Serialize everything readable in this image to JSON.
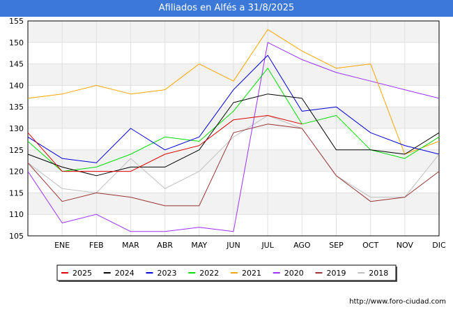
{
  "chart_data": {
    "type": "line",
    "title": "Afiliados en Alfés a 31/8/2025",
    "xlabel": "",
    "ylabel": "",
    "categories": [
      "",
      "ENE",
      "FEB",
      "MAR",
      "ABR",
      "MAY",
      "JUN",
      "JUL",
      "AGO",
      "SEP",
      "OCT",
      "NOV",
      "DIC"
    ],
    "yticks": [
      105,
      110,
      115,
      120,
      125,
      130,
      135,
      140,
      145,
      150,
      155
    ],
    "ylim": [
      105,
      155
    ],
    "legend_position": "bottom",
    "series": [
      {
        "name": "2025",
        "color": "#dd0000",
        "values": [
          129,
          120,
          120,
          120,
          124,
          126,
          132,
          133,
          131,
          null,
          null,
          null,
          null
        ]
      },
      {
        "name": "2024",
        "color": "#000000",
        "values": [
          124,
          121,
          119,
          121,
          121,
          125,
          136,
          138,
          137,
          125,
          125,
          124,
          129
        ]
      },
      {
        "name": "2023",
        "color": "#0000dd",
        "values": [
          128,
          123,
          122,
          130,
          125,
          128,
          139,
          147,
          134,
          135,
          129,
          126,
          124
        ]
      },
      {
        "name": "2022",
        "color": "#00dd00",
        "values": [
          127,
          120,
          121,
          124,
          128,
          127,
          134,
          144,
          131,
          133,
          125,
          123,
          128
        ]
      },
      {
        "name": "2021",
        "color": "#ffa500",
        "values": [
          137,
          138,
          140,
          138,
          139,
          145,
          141,
          153,
          148,
          144,
          145,
          124,
          127
        ]
      },
      {
        "name": "2020",
        "color": "#9b30ff",
        "values": [
          120,
          108,
          110,
          106,
          106,
          107,
          106,
          150,
          146,
          143,
          141,
          139,
          137
        ]
      },
      {
        "name": "2019",
        "color": "#993333",
        "values": [
          122,
          113,
          115,
          114,
          112,
          112,
          129,
          131,
          130,
          119,
          113,
          114,
          120
        ]
      },
      {
        "name": "2018",
        "color": "#c0c0c0",
        "values": [
          122,
          116,
          115,
          123,
          116,
          120,
          128,
          133,
          130,
          119,
          114,
          114,
          124
        ]
      }
    ]
  },
  "footer": {
    "url": "http://www.foro-ciudad.com"
  }
}
